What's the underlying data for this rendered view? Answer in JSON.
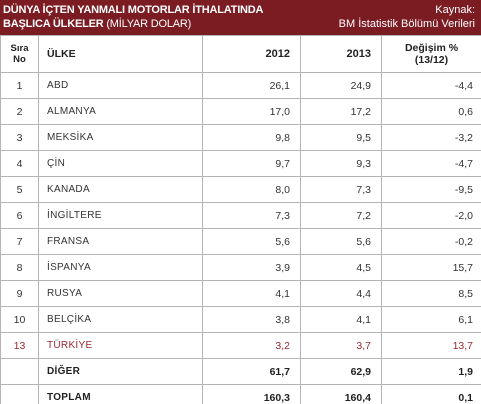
{
  "header": {
    "title_line1": "DÜNYA İÇTEN YANMALI MOTORLAR İTHALATINDA",
    "title_line2_bold": "BAŞLICA ÜLKELER",
    "title_line2_rest": " (MİLYAR DOLAR)",
    "source_label": "Kaynak:",
    "source_value": "BM İstatistik Bölümü Verileri"
  },
  "table": {
    "columns": {
      "rank_line1": "Sıra",
      "rank_line2": "No",
      "country": "ÜLKE",
      "y2012": "2012",
      "y2013": "2013",
      "change_line1": "Değişim %",
      "change_line2": "(13/12)"
    },
    "rows": [
      {
        "rank": "1",
        "country": "ABD",
        "y2012": "26,1",
        "y2013": "24,9",
        "change": "-4,4"
      },
      {
        "rank": "2",
        "country": "ALMANYA",
        "y2012": "17,0",
        "y2013": "17,2",
        "change": "0,6"
      },
      {
        "rank": "3",
        "country": "MEKSİKA",
        "y2012": "9,8",
        "y2013": "9,5",
        "change": "-3,2"
      },
      {
        "rank": "4",
        "country": "ÇİN",
        "y2012": "9,7",
        "y2013": "9,3",
        "change": "-4,7"
      },
      {
        "rank": "5",
        "country": "KANADA",
        "y2012": "8,0",
        "y2013": "7,3",
        "change": "-9,5"
      },
      {
        "rank": "6",
        "country": "İNGİLTERE",
        "y2012": "7,3",
        "y2013": "7,2",
        "change": "-2,0"
      },
      {
        "rank": "7",
        "country": "FRANSA",
        "y2012": "5,6",
        "y2013": "5,6",
        "change": "-0,2"
      },
      {
        "rank": "8",
        "country": "İSPANYA",
        "y2012": "3,9",
        "y2013": "4,5",
        "change": "15,7"
      },
      {
        "rank": "9",
        "country": "RUSYA",
        "y2012": "4,1",
        "y2013": "4,4",
        "change": "8,5"
      },
      {
        "rank": "10",
        "country": "BELÇİKA",
        "y2012": "3,8",
        "y2013": "4,1",
        "change": "6,1"
      },
      {
        "rank": "13",
        "country": "TÜRKİYE",
        "y2012": "3,2",
        "y2013": "3,7",
        "change": "13,7"
      }
    ],
    "other": {
      "label": "DİĞER",
      "y2012": "61,7",
      "y2013": "62,9",
      "change": "1,9"
    },
    "total": {
      "label": "TOPLAM",
      "y2012": "160,3",
      "y2013": "160,4",
      "change": "0,1"
    }
  },
  "colors": {
    "header_bg": "#7a1c22",
    "highlight_text": "#9b2830",
    "border": "#b5b5b5"
  }
}
